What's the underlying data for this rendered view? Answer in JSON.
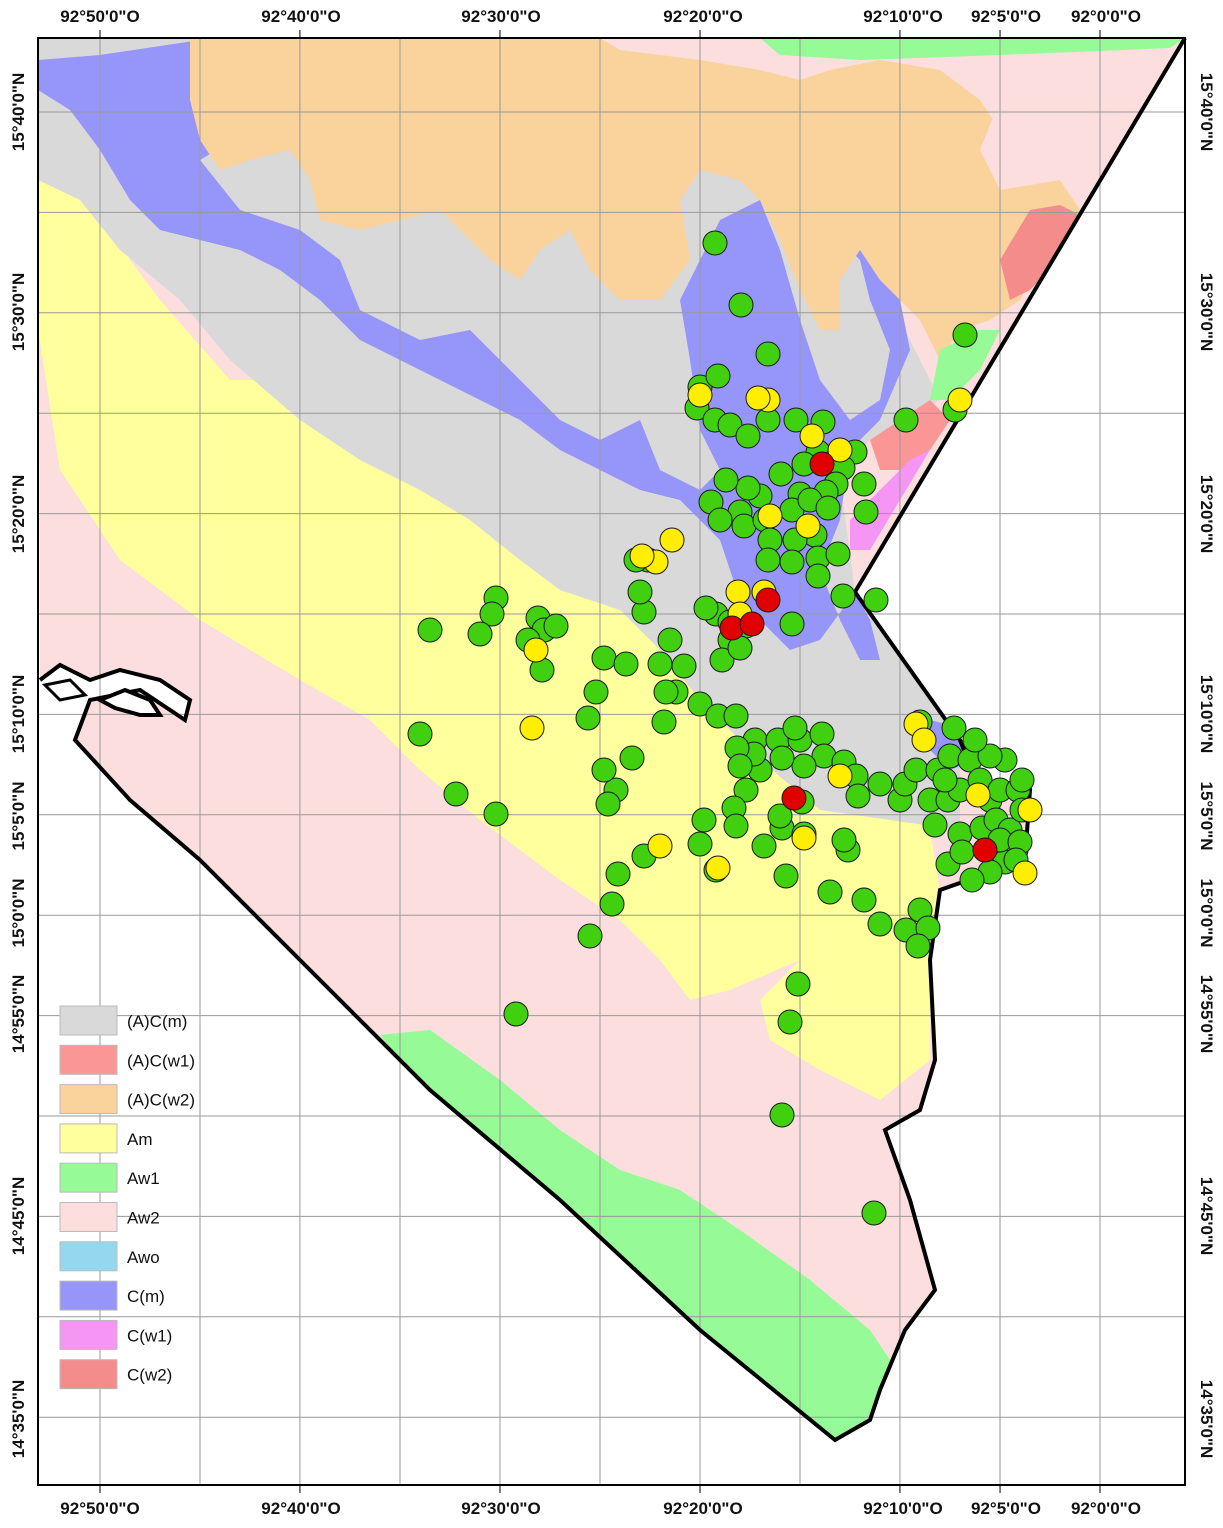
{
  "map": {
    "lon_labels": [
      {
        "label": "92°50'0\"O",
        "lon": -92.8333
      },
      {
        "label": "92°40'0\"O",
        "lon": -92.6667
      },
      {
        "label": "92°30'0\"O",
        "lon": -92.5
      },
      {
        "label": "92°20'0\"O",
        "lon": -92.3333
      },
      {
        "label": "92°10'0\"O",
        "lon": -92.1667
      },
      {
        "label": "92°5'0\"O",
        "lon": -92.0833
      },
      {
        "label": "92°0'0\"O",
        "lon": -92.0
      }
    ],
    "lat_labels": [
      {
        "label": "15°40'0\"N",
        "lat": 15.6667
      },
      {
        "label": "15°30'0\"N",
        "lat": 15.5
      },
      {
        "label": "15°20'0\"N",
        "lat": 15.3333
      },
      {
        "label": "15°10'0\"N",
        "lat": 15.1667
      },
      {
        "label": "15°5'0\"N",
        "lat": 15.0833
      },
      {
        "label": "15°0'0\"N",
        "lat": 15.0
      },
      {
        "label": "14°55'0\"N",
        "lat": 14.9167
      },
      {
        "label": "14°45'0\"N",
        "lat": 14.75
      },
      {
        "label": "14°35'0\"N",
        "lat": 14.5833
      }
    ],
    "legend": [
      {
        "label": "(A)C(m)",
        "color": "#d9d9d9"
      },
      {
        "label": "(A)C(w1)",
        "color": "#fa9696"
      },
      {
        "label": "(A)C(w2)",
        "color": "#fad29b"
      },
      {
        "label": "Am",
        "color": "#ffff9e"
      },
      {
        "label": "Aw1",
        "color": "#96fa96"
      },
      {
        "label": "Aw2",
        "color": "#fcdede"
      },
      {
        "label": "Awo",
        "color": "#96d7f0"
      },
      {
        "label": "C(m)",
        "color": "#9696fa"
      },
      {
        "label": "C(w1)",
        "color": "#f596f5"
      },
      {
        "label": "C(w2)",
        "color": "#f58c8c"
      }
    ],
    "colors": {
      "station_green": "#40d010",
      "station_yellow": "#ffee00",
      "station_red": "#e00000",
      "boundary": "#000000",
      "grid": "#999999"
    }
  }
}
